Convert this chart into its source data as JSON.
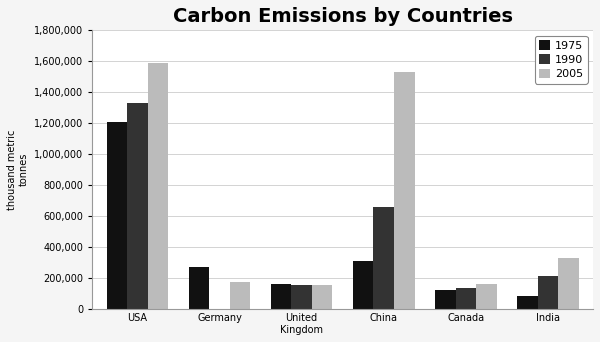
{
  "title": "Carbon Emissions by Countries",
  "ylabel": "thousand metric\ntonnes",
  "categories": [
    "USA",
    "Germany",
    "United\nKingdom",
    "China",
    "Canada",
    "India"
  ],
  "years": [
    "1975",
    "1990",
    "2005"
  ],
  "values": {
    "1975": [
      1210000,
      270000,
      160000,
      310000,
      120000,
      80000
    ],
    "1990": [
      1330000,
      0,
      155000,
      660000,
      130000,
      210000
    ],
    "2005": [
      1590000,
      175000,
      150000,
      1530000,
      160000,
      330000
    ]
  },
  "bar_colors": {
    "1975": "#111111",
    "1990": "#333333",
    "2005": "#bbbbbb"
  },
  "ylim": [
    0,
    1800000
  ],
  "yticks": [
    0,
    200000,
    400000,
    600000,
    800000,
    1000000,
    1200000,
    1400000,
    1600000,
    1800000
  ],
  "background_color": "#f5f5f5",
  "plot_bg_color": "#ffffff",
  "title_fontsize": 14,
  "legend_fontsize": 8,
  "tick_fontsize": 7,
  "ylabel_fontsize": 7,
  "bar_width": 0.25,
  "group_width": 1.0
}
